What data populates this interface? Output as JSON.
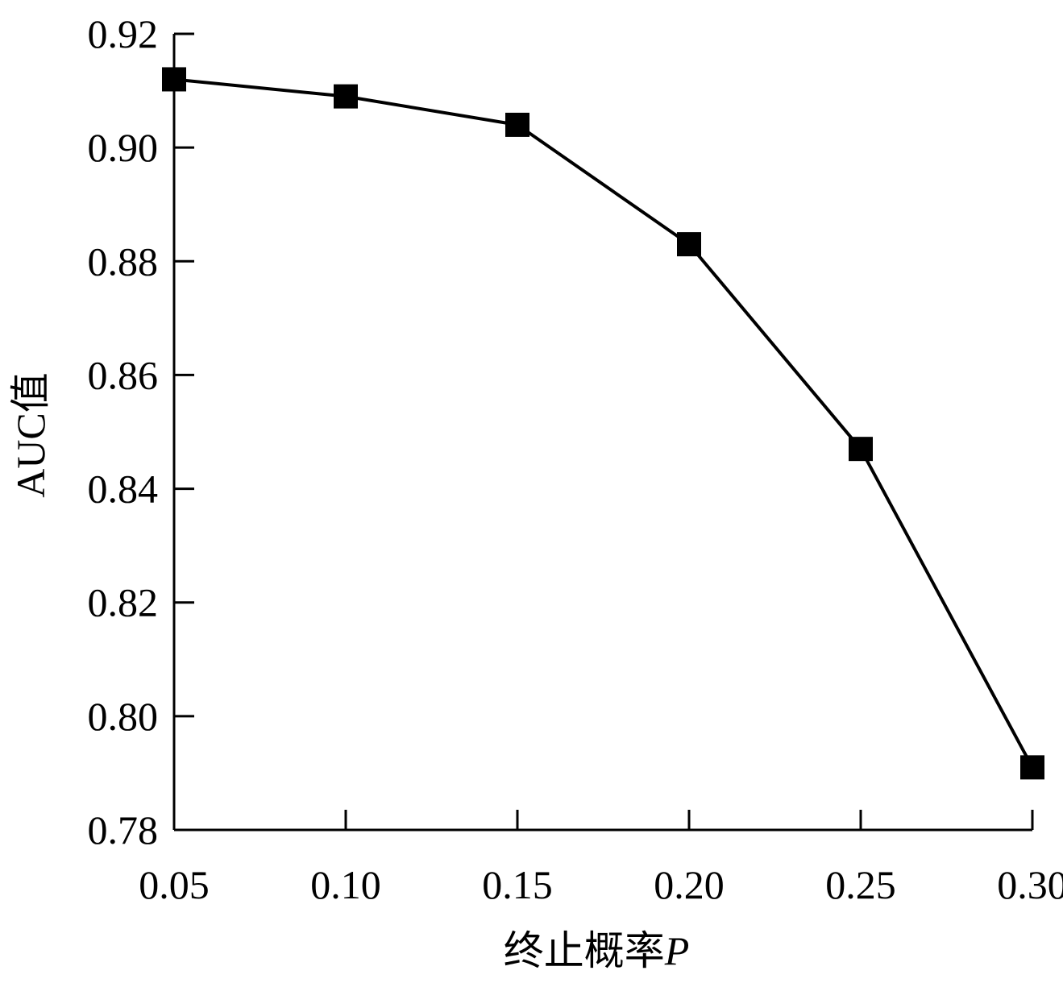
{
  "chart_data": {
    "type": "line",
    "title": "",
    "xlabel": "终止概率",
    "xlabel_var": "P",
    "ylabel": "AUC值",
    "xlim": [
      0.05,
      0.3
    ],
    "ylim": [
      0.78,
      0.92
    ],
    "x_ticks": [
      "0.05",
      "0.10",
      "0.15",
      "0.20",
      "0.25",
      "0.30"
    ],
    "y_ticks": [
      "0.78",
      "0.80",
      "0.82",
      "0.84",
      "0.86",
      "0.88",
      "0.90",
      "0.92"
    ],
    "grid": false,
    "series": [
      {
        "marker": "square",
        "color": "#000000",
        "x": [
          0.05,
          0.1,
          0.15,
          0.2,
          0.25,
          0.3
        ],
        "y": [
          0.912,
          0.909,
          0.904,
          0.883,
          0.847,
          0.791
        ]
      }
    ]
  }
}
